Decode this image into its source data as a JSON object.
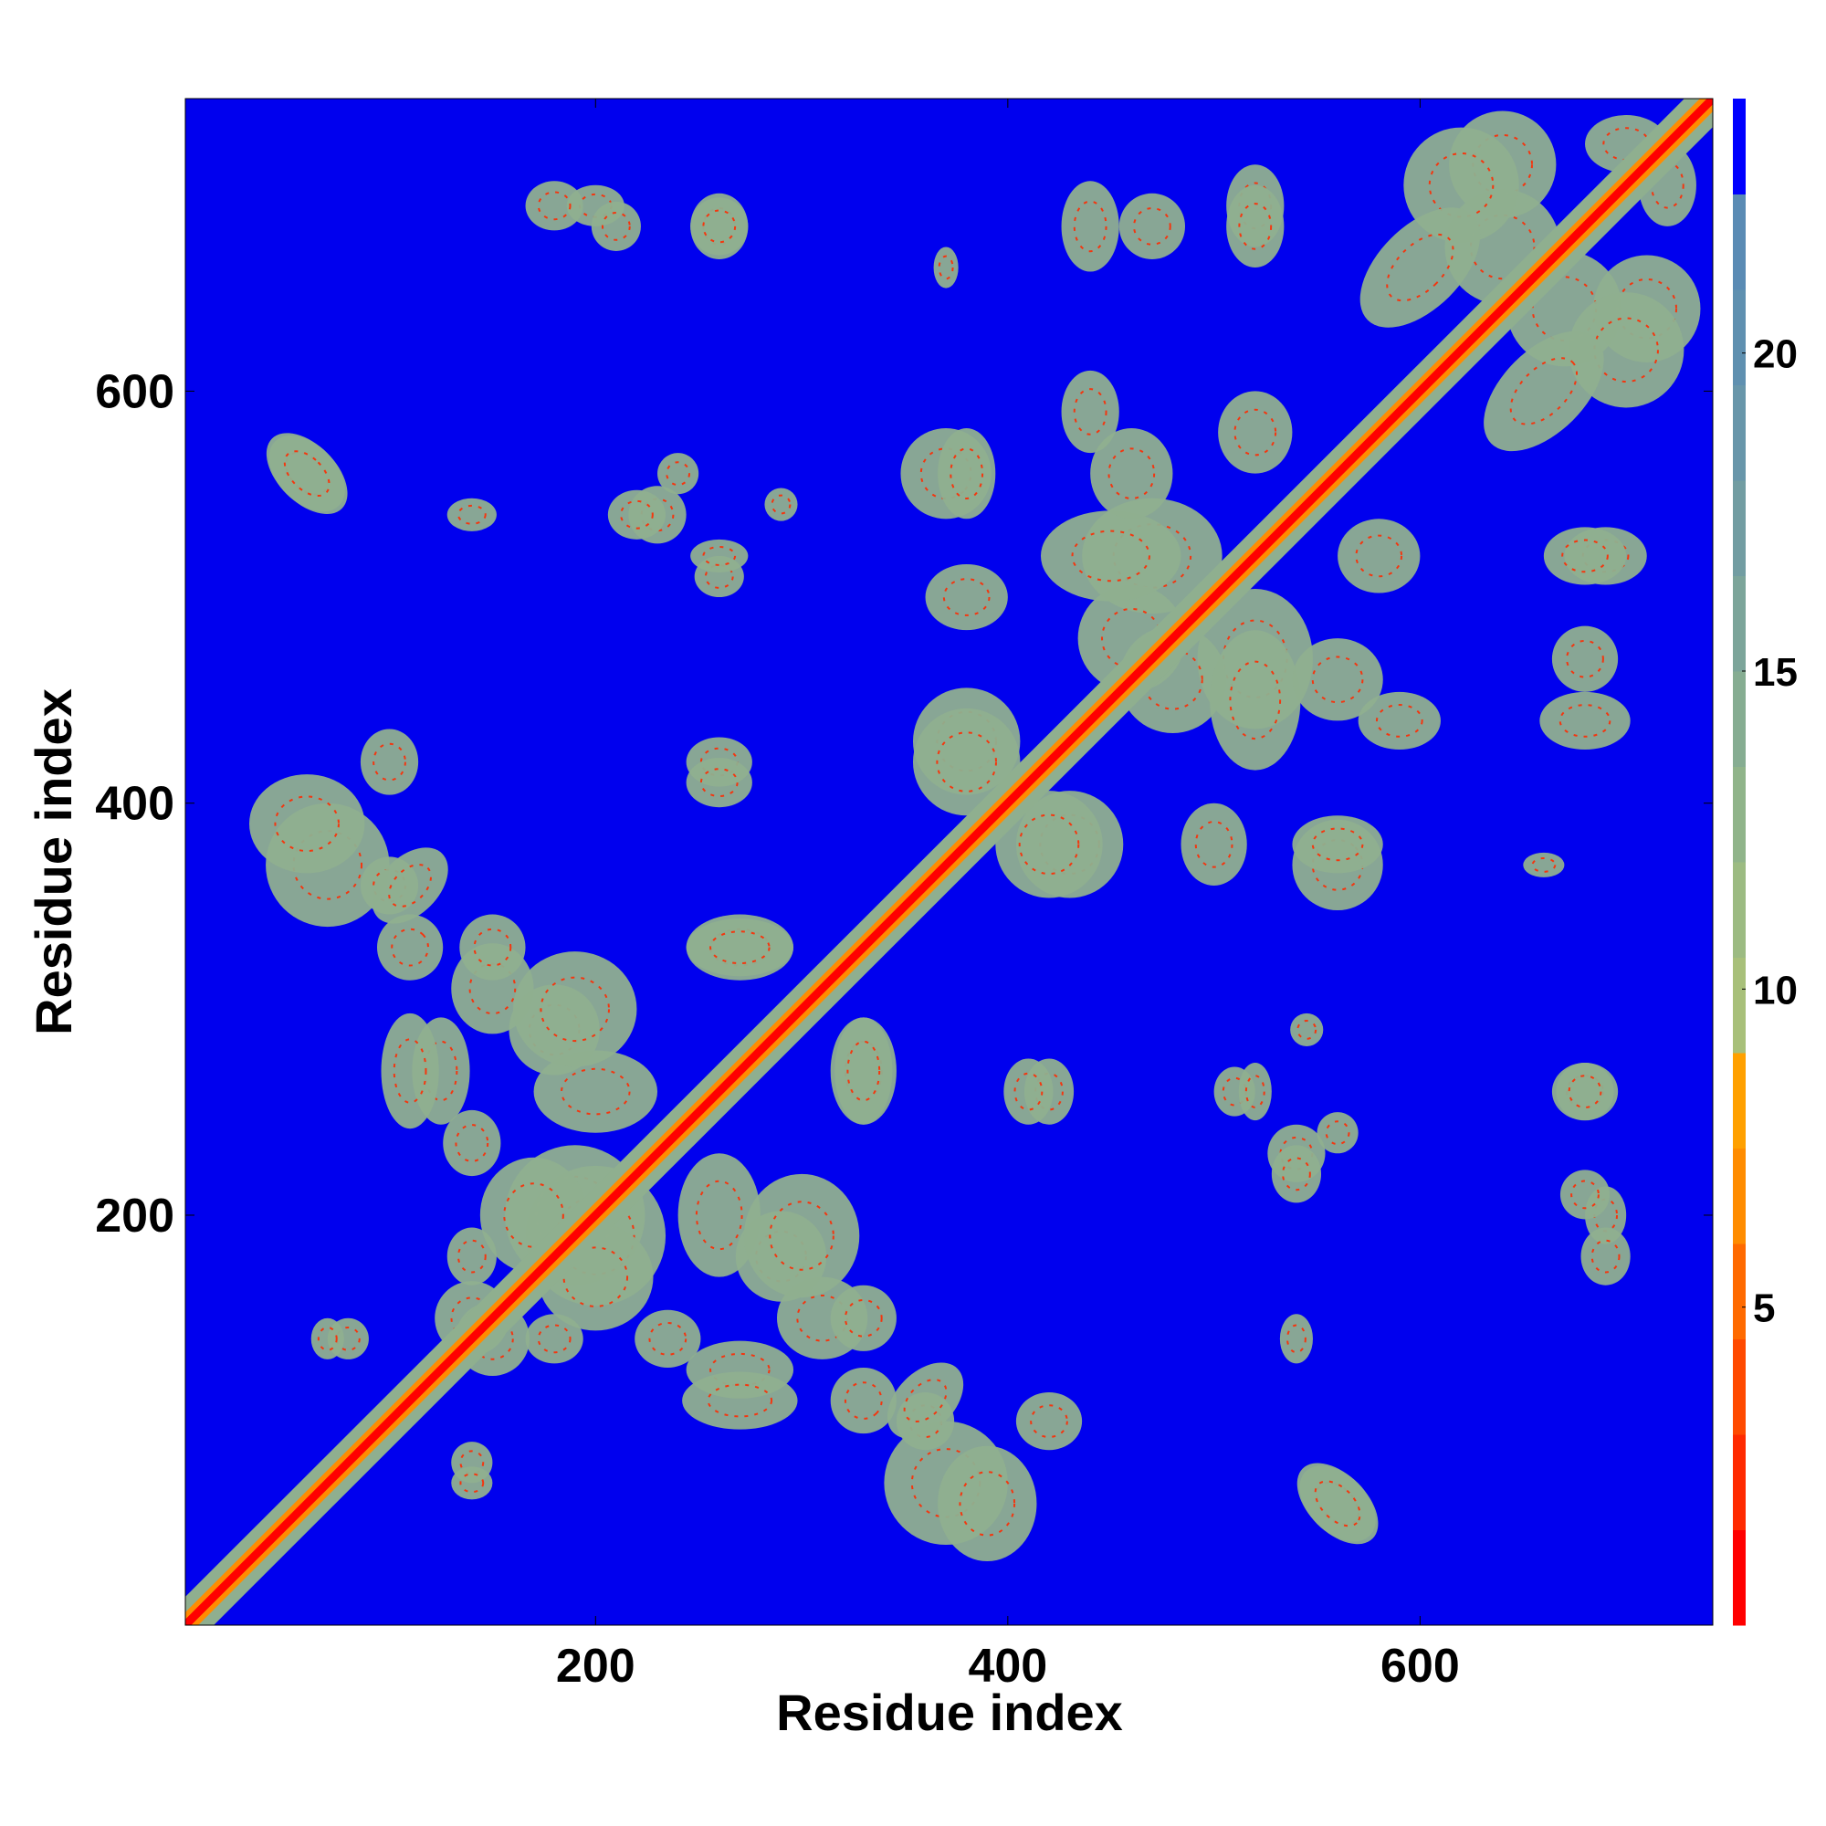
{
  "chart_data": {
    "type": "heatmap",
    "title": "",
    "xlabel": "Residue index",
    "ylabel": "Residue index",
    "xlim": [
      1,
      742
    ],
    "ylim": [
      1,
      742
    ],
    "x_ticks": [
      200,
      400,
      600
    ],
    "y_ticks": [
      200,
      400,
      600
    ],
    "colorbar": {
      "ticks": [
        5,
        10,
        15,
        20
      ],
      "range": [
        0,
        24
      ],
      "bands": [
        {
          "from": 0,
          "to": 1.5,
          "color": "#ff0000"
        },
        {
          "from": 1.5,
          "to": 3,
          "color": "#ff2a00"
        },
        {
          "from": 3,
          "to": 4.5,
          "color": "#ff4a00"
        },
        {
          "from": 4.5,
          "to": 6,
          "color": "#ff6a00"
        },
        {
          "from": 6,
          "to": 7.5,
          "color": "#ff8c00"
        },
        {
          "from": 7.5,
          "to": 9,
          "color": "#ffa000"
        },
        {
          "from": 9,
          "to": 10.5,
          "color": "#a8c07a"
        },
        {
          "from": 10.5,
          "to": 12,
          "color": "#9cbb82"
        },
        {
          "from": 12,
          "to": 13.5,
          "color": "#90b48a"
        },
        {
          "from": 13.5,
          "to": 15,
          "color": "#86ad92"
        },
        {
          "from": 15,
          "to": 16.5,
          "color": "#7ca59a"
        },
        {
          "from": 16.5,
          "to": 18,
          "color": "#729da2"
        },
        {
          "from": 18,
          "to": 19.5,
          "color": "#6896aa"
        },
        {
          "from": 19.5,
          "to": 21,
          "color": "#5f90b0"
        },
        {
          "from": 21,
          "to": 22.5,
          "color": "#5a8bb4"
        },
        {
          "from": 22.5,
          "to": 24,
          "color": "#0000ff"
        }
      ]
    },
    "background_color": "#0000ee",
    "contact_color": "#8faf8f",
    "core_color": "#ff2a00",
    "diagonal_color": "#ff0000",
    "contact_blobs": [
      {
        "x": 60,
        "y": 560,
        "rx": 14,
        "ry": 22,
        "dir": 1
      },
      {
        "x": 70,
        "y": 370,
        "rx": 30,
        "ry": 30
      },
      {
        "x": 100,
        "y": 360,
        "rx": 14,
        "ry": 14
      },
      {
        "x": 110,
        "y": 330,
        "rx": 16,
        "ry": 16,
        "dir": 1
      },
      {
        "x": 150,
        "y": 310,
        "rx": 20,
        "ry": 22
      },
      {
        "x": 180,
        "y": 290,
        "rx": 22,
        "ry": 22
      },
      {
        "x": 125,
        "y": 270,
        "rx": 14,
        "ry": 26
      },
      {
        "x": 140,
        "y": 235,
        "rx": 14,
        "ry": 16
      },
      {
        "x": 190,
        "y": 200,
        "rx": 34,
        "ry": 34
      },
      {
        "x": 200,
        "y": 170,
        "rx": 28,
        "ry": 26
      },
      {
        "x": 150,
        "y": 140,
        "rx": 18,
        "ry": 18
      },
      {
        "x": 180,
        "y": 140,
        "rx": 14,
        "ry": 12
      },
      {
        "x": 260,
        "y": 200,
        "rx": 20,
        "ry": 30
      },
      {
        "x": 300,
        "y": 190,
        "rx": 28,
        "ry": 30
      },
      {
        "x": 270,
        "y": 330,
        "rx": 26,
        "ry": 16
      },
      {
        "x": 330,
        "y": 270,
        "rx": 14,
        "ry": 26
      },
      {
        "x": 270,
        "y": 110,
        "rx": 28,
        "ry": 14
      },
      {
        "x": 330,
        "y": 150,
        "rx": 16,
        "ry": 16
      },
      {
        "x": 360,
        "y": 110,
        "rx": 14,
        "ry": 22,
        "dir": -1
      },
      {
        "x": 390,
        "y": 60,
        "rx": 24,
        "ry": 28
      },
      {
        "x": 420,
        "y": 100,
        "rx": 16,
        "ry": 14
      },
      {
        "x": 560,
        "y": 60,
        "rx": 24,
        "ry": 14,
        "dir": -1
      },
      {
        "x": 380,
        "y": 430,
        "rx": 26,
        "ry": 26
      },
      {
        "x": 420,
        "y": 380,
        "rx": 26,
        "ry": 26
      },
      {
        "x": 370,
        "y": 560,
        "rx": 22,
        "ry": 22,
        "dir": -1
      },
      {
        "x": 440,
        "y": 590,
        "rx": 14,
        "ry": 20
      },
      {
        "x": 470,
        "y": 520,
        "rx": 34,
        "ry": 28
      },
      {
        "x": 460,
        "y": 480,
        "rx": 26,
        "ry": 26
      },
      {
        "x": 520,
        "y": 450,
        "rx": 22,
        "ry": 34
      },
      {
        "x": 520,
        "y": 580,
        "rx": 18,
        "ry": 20
      },
      {
        "x": 560,
        "y": 460,
        "rx": 22,
        "ry": 20
      },
      {
        "x": 560,
        "y": 380,
        "rx": 22,
        "ry": 14
      },
      {
        "x": 500,
        "y": 380,
        "rx": 16,
        "ry": 20
      },
      {
        "x": 640,
        "y": 710,
        "rx": 26,
        "ry": 26
      },
      {
        "x": 670,
        "y": 640,
        "rx": 28,
        "ry": 28
      },
      {
        "x": 700,
        "y": 620,
        "rx": 28,
        "ry": 28
      },
      {
        "x": 600,
        "y": 660,
        "rx": 20,
        "ry": 36,
        "dir": -1
      },
      {
        "x": 720,
        "y": 700,
        "rx": 14,
        "ry": 20
      },
      {
        "x": 690,
        "y": 520,
        "rx": 20,
        "ry": 14
      },
      {
        "x": 680,
        "y": 440,
        "rx": 22,
        "ry": 14
      },
      {
        "x": 680,
        "y": 260,
        "rx": 16,
        "ry": 14
      },
      {
        "x": 690,
        "y": 200,
        "rx": 10,
        "ry": 14
      },
      {
        "x": 230,
        "y": 540,
        "rx": 14,
        "ry": 14
      },
      {
        "x": 260,
        "y": 510,
        "rx": 12,
        "ry": 10
      },
      {
        "x": 260,
        "y": 420,
        "rx": 16,
        "ry": 12
      },
      {
        "x": 240,
        "y": 560,
        "rx": 10,
        "ry": 10
      },
      {
        "x": 180,
        "y": 690,
        "rx": 14,
        "ry": 12
      },
      {
        "x": 210,
        "y": 680,
        "rx": 12,
        "ry": 12
      },
      {
        "x": 260,
        "y": 680,
        "rx": 14,
        "ry": 14
      },
      {
        "x": 470,
        "y": 680,
        "rx": 16,
        "ry": 16
      },
      {
        "x": 520,
        "y": 680,
        "rx": 14,
        "ry": 20
      },
      {
        "x": 370,
        "y": 660,
        "rx": 6,
        "ry": 10
      },
      {
        "x": 410,
        "y": 260,
        "rx": 12,
        "ry": 16
      },
      {
        "x": 540,
        "y": 220,
        "rx": 12,
        "ry": 14
      },
      {
        "x": 520,
        "y": 260,
        "rx": 8,
        "ry": 14
      },
      {
        "x": 545,
        "y": 290,
        "rx": 8,
        "ry": 8
      },
      {
        "x": 540,
        "y": 140,
        "rx": 8,
        "ry": 12
      },
      {
        "x": 140,
        "y": 80,
        "rx": 10,
        "ry": 10
      },
      {
        "x": 70,
        "y": 140,
        "rx": 8,
        "ry": 10
      }
    ]
  }
}
